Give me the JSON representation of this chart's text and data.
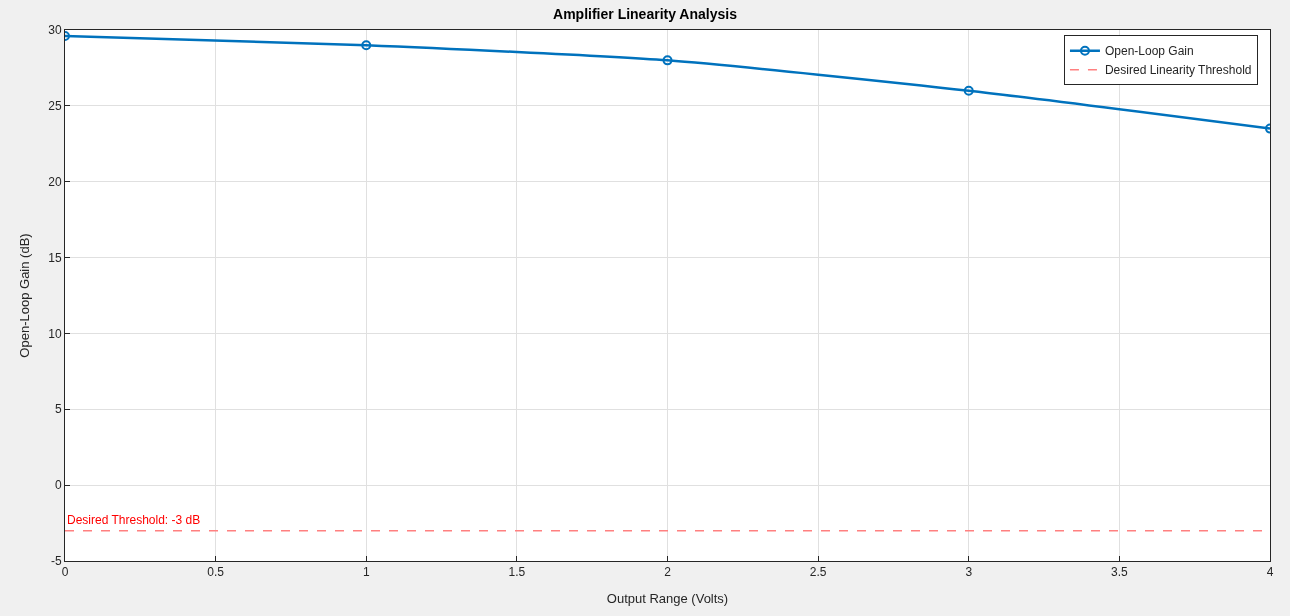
{
  "chart_data": {
    "type": "line",
    "title": "Amplifier Linearity Analysis",
    "xlabel": "Output Range (Volts)",
    "ylabel": "Open-Loop Gain (dB)",
    "x": [
      0,
      1,
      2,
      3,
      4
    ],
    "series": [
      {
        "name": "Open-Loop Gain",
        "color": "#0072bd",
        "values": [
          29.6,
          29,
          28,
          26,
          23.5
        ],
        "marker": "circle",
        "line_style": "solid"
      },
      {
        "name": "Desired Linearity Threshold",
        "color": "#ff8080",
        "x": [
          0,
          4
        ],
        "values": [
          -3,
          -3
        ],
        "marker": "none",
        "line_style": "dashed"
      }
    ],
    "annotations": [
      {
        "text": "Desired Threshold: -3 dB",
        "x": 0,
        "y": -3
      }
    ],
    "xlim": [
      0,
      4
    ],
    "xticks": [
      0,
      0.5,
      1,
      1.5,
      2,
      2.5,
      3,
      3.5,
      4
    ],
    "ylim": [
      -5,
      30
    ],
    "yticks": [
      -5,
      0,
      5,
      10,
      15,
      20,
      25,
      30
    ],
    "grid": true,
    "legend": "top right"
  }
}
